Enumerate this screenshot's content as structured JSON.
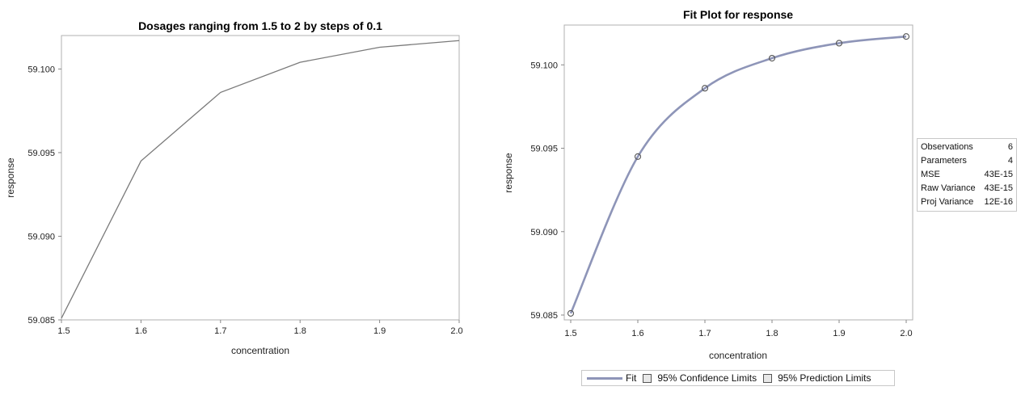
{
  "chart_data": [
    {
      "type": "line",
      "title": "Dosages ranging from 1.5 to 2 by steps of 0.1",
      "xlabel": "concentration",
      "ylabel": "response",
      "xlim": [
        1.5,
        2.0
      ],
      "ylim": [
        59.085,
        59.102
      ],
      "x_ticks": [
        "1.5",
        "1.6",
        "1.7",
        "1.8",
        "1.9",
        "2.0"
      ],
      "y_ticks": [
        "59.085",
        "59.090",
        "59.095",
        "59.100"
      ],
      "x": [
        1.5,
        1.6,
        1.7,
        1.8,
        1.9,
        2.0
      ],
      "y": [
        59.0851,
        59.0945,
        59.0986,
        59.1004,
        59.1013,
        59.1017
      ],
      "line_color": "#7a7a7a",
      "grid": false
    },
    {
      "type": "line",
      "title": "Fit Plot for response",
      "xlabel": "concentration",
      "ylabel": "response",
      "xlim": [
        1.5,
        2.0
      ],
      "ylim": [
        59.085,
        59.102
      ],
      "x_ticks": [
        "1.5",
        "1.6",
        "1.7",
        "1.8",
        "1.9",
        "2.0"
      ],
      "y_ticks": [
        "59.085",
        "59.090",
        "59.095",
        "59.100"
      ],
      "points": {
        "x": [
          1.5,
          1.6,
          1.7,
          1.8,
          1.9,
          2.0
        ],
        "y": [
          59.0851,
          59.0945,
          59.0986,
          59.1004,
          59.1013,
          59.1017
        ]
      },
      "fit_color": "#8e95b8",
      "grid": false,
      "legend": {
        "placement": "bottom",
        "items": [
          "Fit",
          "95% Confidence Limits",
          "95% Prediction Limits"
        ]
      },
      "stats_table": [
        {
          "label": "Observations",
          "value": "6"
        },
        {
          "label": "Parameters",
          "value": "4"
        },
        {
          "label": "MSE",
          "value": "43E-15"
        },
        {
          "label": "Raw Variance",
          "value": "43E-15"
        },
        {
          "label": "Proj Variance",
          "value": "12E-16"
        }
      ]
    }
  ]
}
